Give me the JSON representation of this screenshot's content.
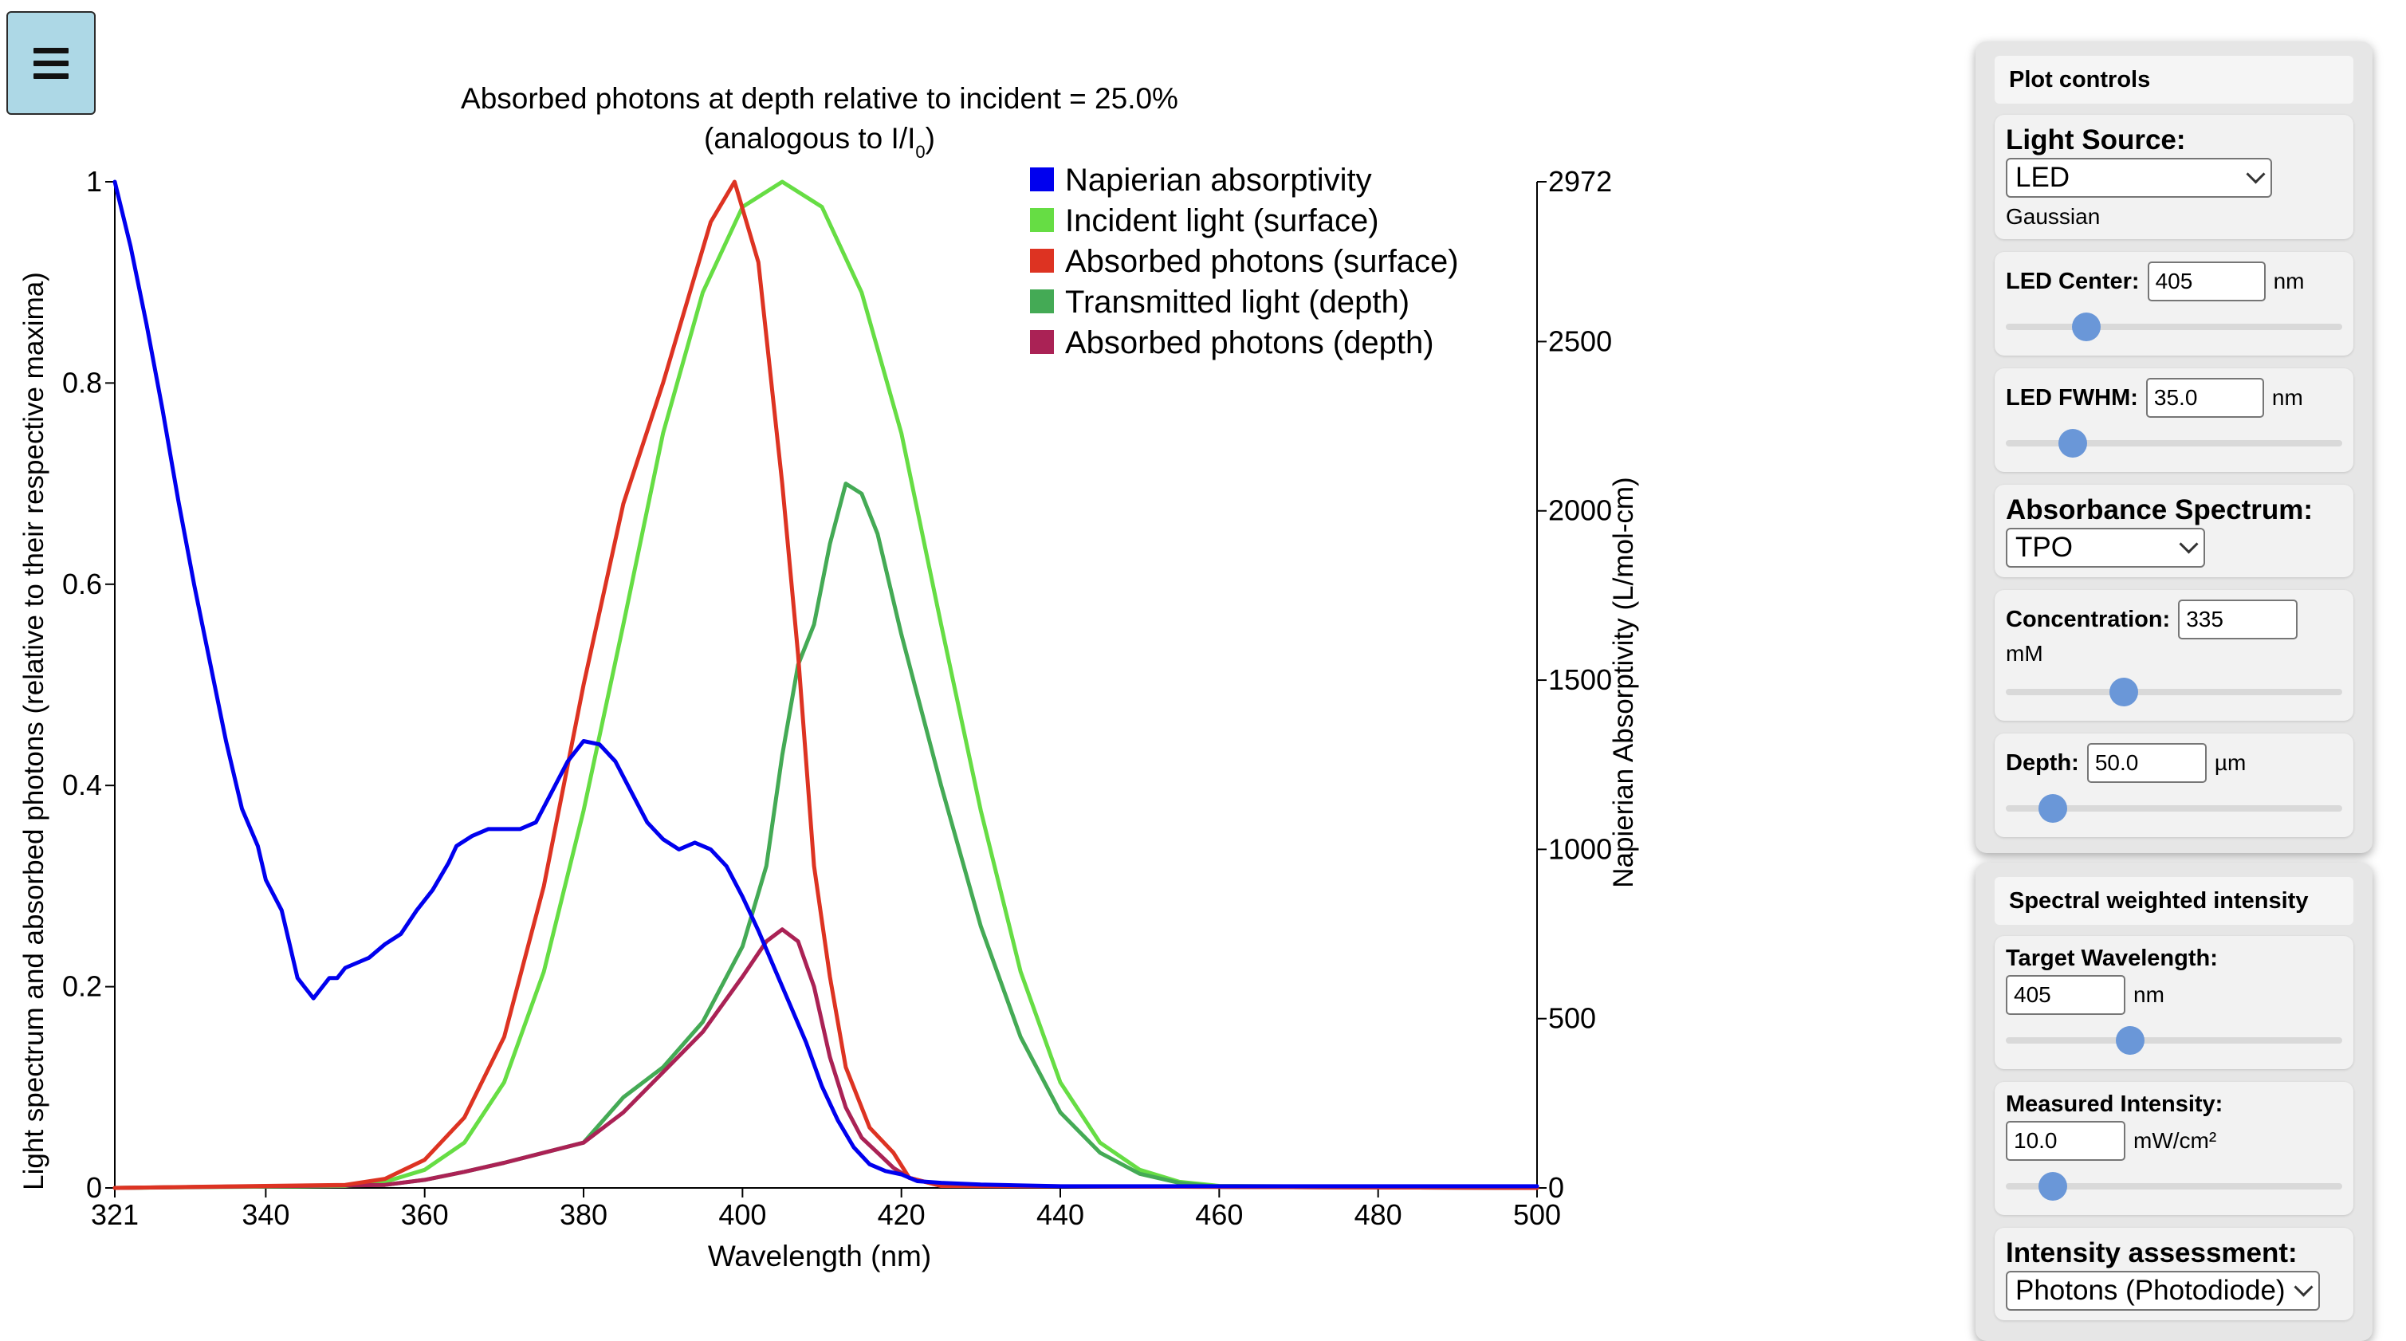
{
  "menu_button": {
    "icon": "hamburger-icon"
  },
  "chart_data": {
    "type": "line",
    "title": "Absorbed photons at depth relative to incident = 25.0%",
    "subtitle_prefix": "(analogous to I/I",
    "subtitle_subscript": "0",
    "subtitle_suffix": ")",
    "xlabel": "Wavelength (nm)",
    "ylabel_left": "Light spectrum and absorbed photons (relative to their respective maxima)",
    "ylabel_right": "Napierian Absorptivity (L/mol-cm)",
    "xlim": [
      321,
      500
    ],
    "ylim_left": [
      0,
      1
    ],
    "ylim_right": [
      0,
      2972
    ],
    "x_ticks": [
      "321",
      "340",
      "360",
      "380",
      "400",
      "420",
      "440",
      "460",
      "480",
      "500"
    ],
    "y_left_ticks": [
      "0",
      "0.2",
      "0.4",
      "0.6",
      "0.8",
      "1"
    ],
    "y_right_ticks": [
      "0",
      "500",
      "1000",
      "1500",
      "2000",
      "2500",
      "2972"
    ],
    "legend_position": "top-right",
    "series": [
      {
        "name": "Napierian absorptivity",
        "color": "#0000ee",
        "axis": "right",
        "points": [
          [
            321,
            2972
          ],
          [
            323,
            2780
          ],
          [
            325,
            2550
          ],
          [
            327,
            2300
          ],
          [
            329,
            2030
          ],
          [
            331,
            1780
          ],
          [
            333,
            1550
          ],
          [
            335,
            1320
          ],
          [
            337,
            1120
          ],
          [
            339,
            1010
          ],
          [
            340,
            910
          ],
          [
            342,
            820
          ],
          [
            343,
            720
          ],
          [
            344,
            620
          ],
          [
            345,
            590
          ],
          [
            346,
            560
          ],
          [
            347,
            590
          ],
          [
            348,
            620
          ],
          [
            349,
            620
          ],
          [
            350,
            650
          ],
          [
            352,
            670
          ],
          [
            353,
            680
          ],
          [
            355,
            720
          ],
          [
            357,
            750
          ],
          [
            359,
            820
          ],
          [
            361,
            880
          ],
          [
            363,
            960
          ],
          [
            364,
            1010
          ],
          [
            366,
            1040
          ],
          [
            368,
            1060
          ],
          [
            370,
            1060
          ],
          [
            372,
            1060
          ],
          [
            374,
            1080
          ],
          [
            376,
            1170
          ],
          [
            378,
            1260
          ],
          [
            380,
            1320
          ],
          [
            382,
            1310
          ],
          [
            384,
            1260
          ],
          [
            386,
            1170
          ],
          [
            388,
            1080
          ],
          [
            390,
            1030
          ],
          [
            392,
            1000
          ],
          [
            394,
            1020
          ],
          [
            396,
            1000
          ],
          [
            398,
            950
          ],
          [
            400,
            860
          ],
          [
            402,
            760
          ],
          [
            404,
            650
          ],
          [
            406,
            540
          ],
          [
            408,
            430
          ],
          [
            410,
            300
          ],
          [
            412,
            200
          ],
          [
            414,
            120
          ],
          [
            416,
            70
          ],
          [
            418,
            50
          ],
          [
            420,
            40
          ],
          [
            422,
            20
          ],
          [
            425,
            15
          ],
          [
            430,
            10
          ],
          [
            440,
            5
          ],
          [
            450,
            5
          ],
          [
            460,
            5
          ],
          [
            470,
            5
          ],
          [
            480,
            5
          ],
          [
            490,
            5
          ],
          [
            500,
            5
          ]
        ]
      },
      {
        "name": "Incident light (surface)",
        "color": "#66dd44",
        "axis": "left",
        "points": [
          [
            321,
            0
          ],
          [
            350,
            0.002
          ],
          [
            355,
            0.006
          ],
          [
            360,
            0.018
          ],
          [
            365,
            0.045
          ],
          [
            370,
            0.105
          ],
          [
            375,
            0.215
          ],
          [
            380,
            0.375
          ],
          [
            385,
            0.56
          ],
          [
            390,
            0.75
          ],
          [
            395,
            0.89
          ],
          [
            400,
            0.975
          ],
          [
            405,
            1.0
          ],
          [
            410,
            0.975
          ],
          [
            415,
            0.89
          ],
          [
            420,
            0.75
          ],
          [
            425,
            0.56
          ],
          [
            430,
            0.375
          ],
          [
            435,
            0.215
          ],
          [
            440,
            0.105
          ],
          [
            445,
            0.045
          ],
          [
            450,
            0.018
          ],
          [
            455,
            0.006
          ],
          [
            460,
            0.002
          ],
          [
            500,
            0
          ]
        ]
      },
      {
        "name": "Absorbed photons (surface)",
        "color": "#dd3322",
        "axis": "left",
        "points": [
          [
            321,
            0
          ],
          [
            350,
            0.003
          ],
          [
            355,
            0.009
          ],
          [
            360,
            0.028
          ],
          [
            365,
            0.07
          ],
          [
            370,
            0.15
          ],
          [
            375,
            0.3
          ],
          [
            380,
            0.5
          ],
          [
            385,
            0.68
          ],
          [
            390,
            0.8
          ],
          [
            393,
            0.88
          ],
          [
            396,
            0.96
          ],
          [
            399,
            1.0
          ],
          [
            402,
            0.92
          ],
          [
            405,
            0.7
          ],
          [
            407,
            0.53
          ],
          [
            409,
            0.32
          ],
          [
            411,
            0.21
          ],
          [
            413,
            0.12
          ],
          [
            416,
            0.06
          ],
          [
            419,
            0.035
          ],
          [
            421,
            0.01
          ],
          [
            425,
            0.002
          ],
          [
            500,
            0
          ]
        ]
      },
      {
        "name": "Transmitted light (depth)",
        "color": "#44aa55",
        "axis": "left",
        "points": [
          [
            321,
            0
          ],
          [
            355,
            0.003
          ],
          [
            360,
            0.008
          ],
          [
            365,
            0.016
          ],
          [
            370,
            0.025
          ],
          [
            375,
            0.035
          ],
          [
            380,
            0.045
          ],
          [
            385,
            0.09
          ],
          [
            390,
            0.12
          ],
          [
            395,
            0.165
          ],
          [
            400,
            0.24
          ],
          [
            403,
            0.32
          ],
          [
            405,
            0.43
          ],
          [
            407,
            0.52
          ],
          [
            409,
            0.56
          ],
          [
            411,
            0.64
          ],
          [
            413,
            0.7
          ],
          [
            415,
            0.69
          ],
          [
            417,
            0.65
          ],
          [
            420,
            0.55
          ],
          [
            425,
            0.4
          ],
          [
            430,
            0.26
          ],
          [
            435,
            0.15
          ],
          [
            440,
            0.075
          ],
          [
            445,
            0.035
          ],
          [
            450,
            0.014
          ],
          [
            455,
            0.005
          ],
          [
            460,
            0.001
          ],
          [
            500,
            0
          ]
        ]
      },
      {
        "name": "Absorbed photons (depth)",
        "color": "#aa2255",
        "axis": "left",
        "points": [
          [
            321,
            0
          ],
          [
            355,
            0.003
          ],
          [
            360,
            0.008
          ],
          [
            365,
            0.016
          ],
          [
            370,
            0.025
          ],
          [
            375,
            0.035
          ],
          [
            380,
            0.045
          ],
          [
            385,
            0.075
          ],
          [
            390,
            0.115
          ],
          [
            395,
            0.155
          ],
          [
            400,
            0.21
          ],
          [
            403,
            0.245
          ],
          [
            405,
            0.257
          ],
          [
            407,
            0.245
          ],
          [
            409,
            0.2
          ],
          [
            411,
            0.13
          ],
          [
            413,
            0.08
          ],
          [
            415,
            0.05
          ],
          [
            417,
            0.035
          ],
          [
            419,
            0.02
          ],
          [
            421,
            0.01
          ],
          [
            425,
            0.002
          ],
          [
            500,
            0
          ]
        ]
      }
    ]
  },
  "panel1": {
    "header": "Plot controls",
    "light_source": {
      "label": "Light Source:",
      "value": "LED",
      "note": "Gaussian"
    },
    "led_center": {
      "label": "LED Center:",
      "value": "405",
      "unit": "nm",
      "slider": 0.24
    },
    "led_fwhm": {
      "label": "LED FWHM:",
      "value": "35.0",
      "unit": "nm",
      "slider": 0.2
    },
    "absorbance_spectrum": {
      "label": "Absorbance Spectrum:",
      "value": "TPO"
    },
    "concentration": {
      "label": "Concentration:",
      "value": "335",
      "unit": "mM",
      "slider": 0.35
    },
    "depth": {
      "label": "Depth:",
      "value": "50.0",
      "unit": "µm",
      "slider": 0.14
    }
  },
  "panel2": {
    "header": "Spectral weighted intensity",
    "target_wavelength": {
      "label": "Target Wavelength:",
      "value": "405",
      "unit": "nm",
      "slider": 0.37
    },
    "measured_intensity": {
      "label": "Measured Intensity:",
      "value": "10.0",
      "unit": "mW/cm²",
      "slider": 0.14
    },
    "intensity_assessment": {
      "label": "Intensity assessment:",
      "value": "Photons (Photodiode)"
    }
  }
}
